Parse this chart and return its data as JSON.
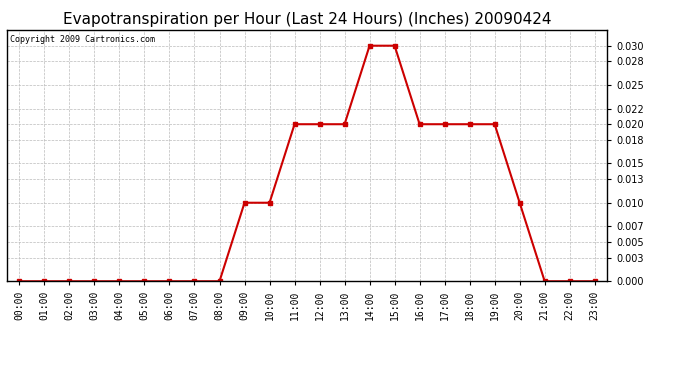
{
  "title": "Evapotranspiration per Hour (Last 24 Hours) (Inches) 20090424",
  "copyright": "Copyright 2009 Cartronics.com",
  "hours": [
    "00:00",
    "01:00",
    "02:00",
    "03:00",
    "04:00",
    "05:00",
    "06:00",
    "07:00",
    "08:00",
    "09:00",
    "10:00",
    "11:00",
    "12:00",
    "13:00",
    "14:00",
    "15:00",
    "16:00",
    "17:00",
    "18:00",
    "19:00",
    "20:00",
    "21:00",
    "22:00",
    "23:00"
  ],
  "values": [
    0.0,
    0.0,
    0.0,
    0.0,
    0.0,
    0.0,
    0.0,
    0.0,
    0.0,
    0.01,
    0.01,
    0.02,
    0.02,
    0.02,
    0.03,
    0.03,
    0.02,
    0.02,
    0.02,
    0.02,
    0.01,
    0.0,
    0.0,
    0.0
  ],
  "line_color": "#cc0000",
  "marker": "s",
  "marker_size": 3,
  "marker_color": "#cc0000",
  "ylim": [
    0.0,
    0.032
  ],
  "yticks": [
    0.0,
    0.003,
    0.005,
    0.007,
    0.01,
    0.013,
    0.015,
    0.018,
    0.02,
    0.022,
    0.025,
    0.028,
    0.03
  ],
  "grid_color": "#bbbbbb",
  "grid_style": "--",
  "background_color": "#ffffff",
  "title_fontsize": 11,
  "copyright_fontsize": 6,
  "tick_fontsize": 7
}
